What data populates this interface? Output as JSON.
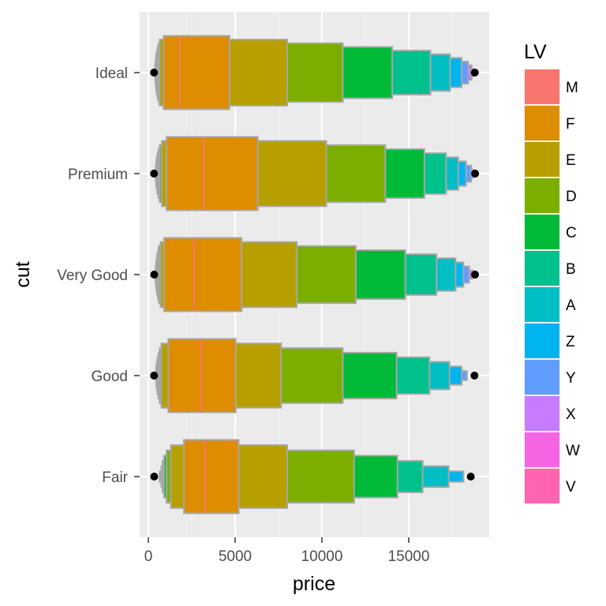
{
  "chart_data": {
    "type": "letter-value boxplot",
    "xlabel": "price",
    "ylabel": "cut",
    "xlim": [
      -500,
      19500
    ],
    "x_ticks": [
      0,
      5000,
      10000,
      15000
    ],
    "x_tick_labels": [
      "0",
      "5000",
      "10000",
      "15000"
    ],
    "categories": [
      "Ideal",
      "Premium",
      "Very Good",
      "Good",
      "Fair"
    ],
    "grid": true,
    "legend": {
      "title": "LV",
      "position": "right",
      "levels": [
        "M",
        "F",
        "E",
        "D",
        "C",
        "B",
        "A",
        "Z",
        "Y",
        "X",
        "W",
        "V"
      ],
      "colors": [
        "#F8766D",
        "#DE8C00",
        "#B79F00",
        "#7CAE00",
        "#00BA38",
        "#00C08B",
        "#00BFC4",
        "#00B4F0",
        "#619CFF",
        "#C77CFF",
        "#F564E3",
        "#FF64B0"
      ]
    },
    "series": [
      {
        "category": "Ideal",
        "median": 1810,
        "boxes": [
          {
            "level": "F",
            "lower": 880,
            "upper": 4680
          },
          {
            "level": "E",
            "lower": 650,
            "upper": 8000
          },
          {
            "level": "D",
            "lower": 580,
            "upper": 11200
          },
          {
            "level": "C",
            "lower": 530,
            "upper": 14050
          },
          {
            "level": "B",
            "lower": 480,
            "upper": 16250
          },
          {
            "level": "A",
            "lower": 450,
            "upper": 17380
          },
          {
            "level": "Z",
            "lower": 430,
            "upper": 18050
          },
          {
            "level": "Y",
            "lower": 410,
            "upper": 18420
          },
          {
            "level": "X",
            "lower": 395,
            "upper": 18620
          },
          {
            "level": "W",
            "lower": 380,
            "upper": 18720
          }
        ],
        "outliers": [
          326,
          18806
        ]
      },
      {
        "category": "Premium",
        "median": 3185,
        "boxes": [
          {
            "level": "F",
            "lower": 1050,
            "upper": 6300
          },
          {
            "level": "E",
            "lower": 780,
            "upper": 10250
          },
          {
            "level": "D",
            "lower": 650,
            "upper": 13650
          },
          {
            "level": "C",
            "lower": 580,
            "upper": 15900
          },
          {
            "level": "B",
            "lower": 520,
            "upper": 17150
          },
          {
            "level": "A",
            "lower": 480,
            "upper": 17850
          },
          {
            "level": "Z",
            "lower": 450,
            "upper": 18300
          },
          {
            "level": "Y",
            "lower": 430,
            "upper": 18600
          },
          {
            "level": "X",
            "lower": 410,
            "upper": 18720
          }
        ],
        "outliers": [
          326,
          18823
        ]
      },
      {
        "category": "Very Good",
        "median": 2648,
        "boxes": [
          {
            "level": "F",
            "lower": 910,
            "upper": 5370
          },
          {
            "level": "E",
            "lower": 700,
            "upper": 8550
          },
          {
            "level": "D",
            "lower": 600,
            "upper": 11950
          },
          {
            "level": "C",
            "lower": 550,
            "upper": 14800
          },
          {
            "level": "B",
            "lower": 500,
            "upper": 16600
          },
          {
            "level": "A",
            "lower": 470,
            "upper": 17700
          },
          {
            "level": "Z",
            "lower": 440,
            "upper": 18150
          },
          {
            "level": "Y",
            "lower": 420,
            "upper": 18480
          },
          {
            "level": "X",
            "lower": 400,
            "upper": 18700
          }
        ],
        "outliers": [
          336,
          18818
        ]
      },
      {
        "category": "Good",
        "median": 3050,
        "boxes": [
          {
            "level": "F",
            "lower": 1150,
            "upper": 5030
          },
          {
            "level": "E",
            "lower": 750,
            "upper": 7650
          },
          {
            "level": "D",
            "lower": 650,
            "upper": 11200
          },
          {
            "level": "C",
            "lower": 580,
            "upper": 14300
          },
          {
            "level": "B",
            "lower": 520,
            "upper": 16200
          },
          {
            "level": "A",
            "lower": 480,
            "upper": 17350
          },
          {
            "level": "Z",
            "lower": 450,
            "upper": 18050
          },
          {
            "level": "Y",
            "lower": 430,
            "upper": 18350
          }
        ],
        "outliers": [
          327,
          18788
        ]
      },
      {
        "category": "Fair",
        "median": 3282,
        "boxes": [
          {
            "level": "F",
            "lower": 2050,
            "upper": 5200
          },
          {
            "level": "E",
            "lower": 1300,
            "upper": 8000
          },
          {
            "level": "D",
            "lower": 1050,
            "upper": 11850
          },
          {
            "level": "C",
            "lower": 900,
            "upper": 14350
          },
          {
            "level": "B",
            "lower": 820,
            "upper": 15800
          },
          {
            "level": "A",
            "lower": 750,
            "upper": 17300
          },
          {
            "level": "Z",
            "lower": 650,
            "upper": 18150
          }
        ],
        "outliers": [
          337,
          18574
        ]
      }
    ]
  }
}
